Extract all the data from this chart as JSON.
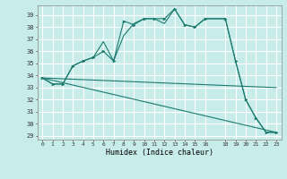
{
  "title": "",
  "xlabel": "Humidex (Indice chaleur)",
  "background_color": "#c8ecea",
  "grid_color": "#ffffff",
  "line_color": "#1a7a6e",
  "xlim": [
    -0.5,
    23.5
  ],
  "ylim": [
    28.7,
    39.8
  ],
  "yticks": [
    29,
    30,
    31,
    32,
    33,
    34,
    35,
    36,
    37,
    38,
    39
  ],
  "xticks": [
    0,
    1,
    2,
    3,
    4,
    5,
    6,
    7,
    8,
    9,
    10,
    11,
    12,
    13,
    14,
    15,
    16,
    18,
    19,
    20,
    21,
    22,
    23
  ],
  "line1_x": [
    0,
    1,
    2,
    3,
    4,
    5,
    6,
    7,
    8,
    9,
    10,
    11,
    12,
    13,
    14,
    15,
    16,
    18,
    19,
    20,
    21,
    22,
    23
  ],
  "line1_y": [
    33.8,
    33.3,
    33.3,
    34.8,
    35.2,
    35.5,
    36.0,
    35.2,
    38.5,
    38.2,
    38.7,
    38.7,
    38.7,
    39.5,
    38.2,
    38.0,
    38.7,
    38.7,
    35.2,
    32.0,
    30.5,
    29.3,
    29.3
  ],
  "line2_x": [
    0,
    1,
    2,
    3,
    4,
    5,
    6,
    7,
    8,
    9,
    10,
    11,
    12,
    13,
    14,
    15,
    16,
    18,
    19,
    20,
    21,
    22,
    23
  ],
  "line2_y": [
    33.8,
    33.3,
    33.3,
    34.8,
    35.2,
    35.5,
    36.8,
    35.2,
    37.3,
    38.3,
    38.7,
    38.7,
    38.3,
    39.5,
    38.2,
    38.0,
    38.7,
    38.7,
    35.2,
    32.0,
    30.5,
    29.3,
    29.3
  ],
  "line3_x": [
    0,
    23
  ],
  "line3_y": [
    33.8,
    33.0
  ],
  "line4_x": [
    0,
    23
  ],
  "line4_y": [
    33.8,
    29.3
  ],
  "marker_x": [
    0,
    1,
    3,
    4,
    5,
    8,
    9,
    10,
    11,
    12,
    13,
    14,
    15,
    16,
    18,
    19,
    20,
    21,
    22,
    23
  ],
  "marker_y": [
    33.8,
    33.3,
    34.8,
    35.2,
    35.5,
    38.5,
    38.2,
    38.7,
    38.7,
    38.7,
    39.5,
    38.2,
    38.0,
    38.7,
    38.7,
    35.2,
    32.0,
    30.5,
    29.3,
    29.3
  ]
}
